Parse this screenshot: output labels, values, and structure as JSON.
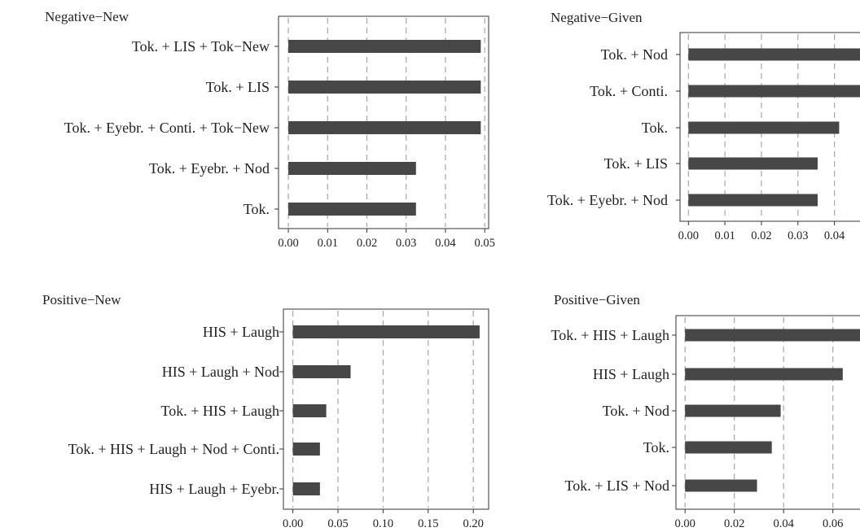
{
  "colors": {
    "bar": "#474747",
    "grid": "#a6a6a6",
    "frame": "#333333"
  },
  "chart_data": [
    {
      "type": "bar",
      "orientation": "horizontal",
      "title": "Negative−New",
      "categories": [
        "Tok. + LIS + Tok−New",
        "Tok. + LIS",
        "Tok. + Eyebr. + Conti. + Tok−New",
        "Tok. + Eyebr. + Nod",
        "Tok."
      ],
      "values": [
        0.049,
        0.049,
        0.049,
        0.0325,
        0.0325
      ],
      "ticks": [
        0.0,
        0.01,
        0.02,
        0.03,
        0.04,
        0.05
      ],
      "tick_labels": [
        "0.00",
        "0.01",
        "0.02",
        "0.03",
        "0.04",
        "0.05"
      ],
      "xlim": [
        -0.0025,
        0.051
      ],
      "grid": "vertical dashed"
    },
    {
      "type": "bar",
      "orientation": "horizontal",
      "title": "Negative−Given",
      "categories": [
        "Tok. + Nod",
        "Tok. + Conti.",
        "Tok.",
        "Tok. + LIS",
        "Tok. + Eyebr. + Nod"
      ],
      "values": [
        0.047,
        0.047,
        0.0413,
        0.0354,
        0.0354
      ],
      "ticks": [
        0.0,
        0.01,
        0.02,
        0.03,
        0.04
      ],
      "tick_labels": [
        "0.00",
        "0.01",
        "0.02",
        "0.03",
        "0.04"
      ],
      "xlim": [
        -0.0023,
        0.047
      ],
      "grid": "vertical dashed"
    },
    {
      "type": "bar",
      "orientation": "horizontal",
      "title": "Positive−New",
      "categories": [
        "HIS + Laugh",
        "HIS + Laugh + Nod",
        "Tok. + HIS + Laugh",
        "Tok. + HIS + Laugh + Nod + Conti.",
        "HIS + Laugh + Eyebr."
      ],
      "values": [
        0.207,
        0.064,
        0.037,
        0.03,
        0.03
      ],
      "ticks": [
        0.0,
        0.05,
        0.1,
        0.15,
        0.2
      ],
      "tick_labels": [
        "0.00",
        "0.05",
        "0.10",
        "0.15",
        "0.20"
      ],
      "xlim": [
        -0.0105,
        0.217
      ],
      "grid": "vertical dashed"
    },
    {
      "type": "bar",
      "orientation": "horizontal",
      "title": "Positive−Given",
      "categories": [
        "Tok. + HIS + Laugh",
        "HIS + Laugh",
        "Tok. + Nod",
        "Tok.",
        "Tok. + LIS + Nod"
      ],
      "values": [
        0.071,
        0.064,
        0.0388,
        0.0352,
        0.0292
      ],
      "ticks": [
        0.0,
        0.02,
        0.04,
        0.06
      ],
      "tick_labels": [
        "0.00",
        "0.02",
        "0.04",
        "0.06"
      ],
      "xlim": [
        -0.0037,
        0.071
      ],
      "grid": "vertical dashed"
    }
  ]
}
